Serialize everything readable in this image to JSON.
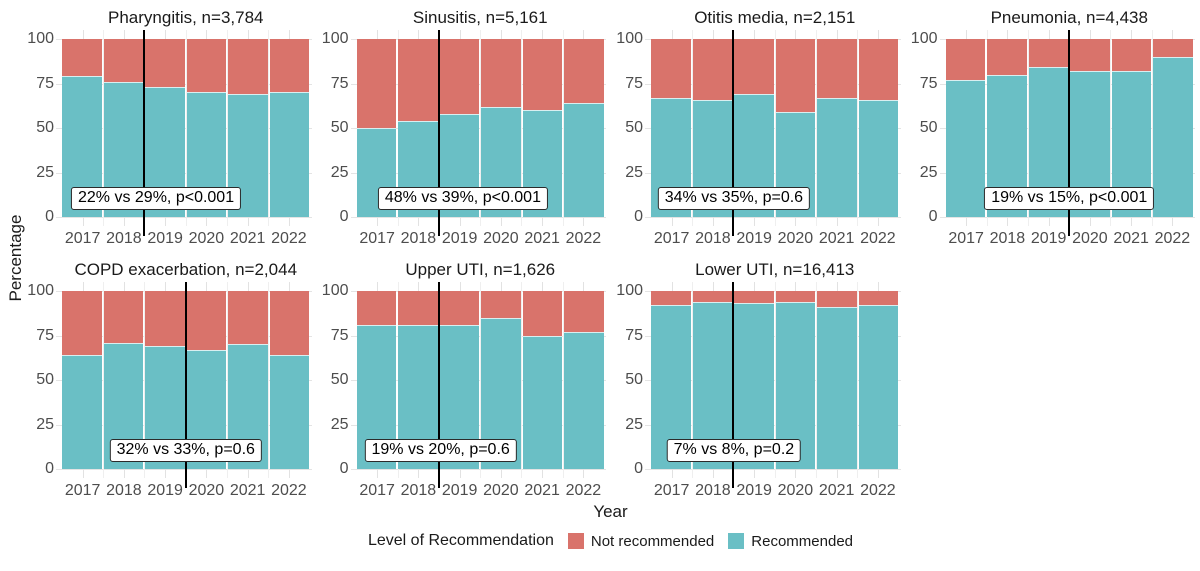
{
  "figure": {
    "y_axis_title": "Percentage",
    "x_axis_title": "Year",
    "legend": {
      "title": "Level of Recommendation",
      "items": [
        {
          "label": "Not recommended",
          "color": "#D9736B"
        },
        {
          "label": "Recommended",
          "color": "#6ABFC5"
        }
      ]
    }
  },
  "chart_data": {
    "type": "bar",
    "stacked": true,
    "stack_total": 100,
    "categories": [
      "2017",
      "2018",
      "2019",
      "2020",
      "2021",
      "2022"
    ],
    "ylim": [
      0,
      100
    ],
    "yticks": [
      0,
      25,
      50,
      75,
      100
    ],
    "ylabel": "Percentage",
    "xlabel": "Year",
    "grid": true,
    "legend_position": "bottom",
    "legend_title": "Level of Recommendation",
    "series": [
      {
        "name": "Not recommended",
        "color": "#D9736B"
      },
      {
        "name": "Recommended",
        "color": "#6ABFC5"
      }
    ],
    "panels": [
      {
        "title": "Pharyngitis, n=3,784",
        "recommended": [
          79,
          76,
          73,
          70,
          69,
          70
        ],
        "not_recommended": [
          21,
          24,
          27,
          30,
          31,
          30
        ],
        "reference_line_x": 2018.5,
        "annotation": "22% vs 29%, p<0.001"
      },
      {
        "title": "Sinusitis, n=5,161",
        "recommended": [
          50,
          54,
          58,
          62,
          60,
          64
        ],
        "not_recommended": [
          50,
          46,
          42,
          38,
          40,
          36
        ],
        "reference_line_x": 2018.5,
        "annotation": "48% vs 39%, p<0.001"
      },
      {
        "title": "Otitis media, n=2,151",
        "recommended": [
          67,
          66,
          69,
          59,
          67,
          66
        ],
        "not_recommended": [
          33,
          34,
          31,
          41,
          33,
          34
        ],
        "reference_line_x": 2018.5,
        "annotation": "34% vs 35%, p=0.6"
      },
      {
        "title": "Pneumonia, n=4,438",
        "recommended": [
          77,
          80,
          84,
          82,
          82,
          90
        ],
        "not_recommended": [
          23,
          20,
          16,
          18,
          18,
          10
        ],
        "reference_line_x": 2019.5,
        "annotation": "19% vs 15%, p<0.001"
      },
      {
        "title": "COPD exacerbation, n=2,044",
        "recommended": [
          64,
          71,
          69,
          67,
          70,
          64
        ],
        "not_recommended": [
          36,
          29,
          31,
          33,
          30,
          36
        ],
        "reference_line_x": 2019.5,
        "annotation": "32% vs 33%, p=0.6"
      },
      {
        "title": "Upper UTI, n=1,626",
        "recommended": [
          81,
          81,
          81,
          85,
          75,
          77
        ],
        "not_recommended": [
          19,
          19,
          19,
          15,
          25,
          23
        ],
        "reference_line_x": 2018.5,
        "annotation": "19% vs 20%, p=0.6"
      },
      {
        "title": "Lower UTI, n=16,413",
        "recommended": [
          92,
          94,
          93,
          94,
          91,
          92
        ],
        "not_recommended": [
          8,
          6,
          7,
          6,
          9,
          8
        ],
        "reference_line_x": 2018.5,
        "annotation": "7% vs 8%, p=0.2"
      }
    ]
  }
}
